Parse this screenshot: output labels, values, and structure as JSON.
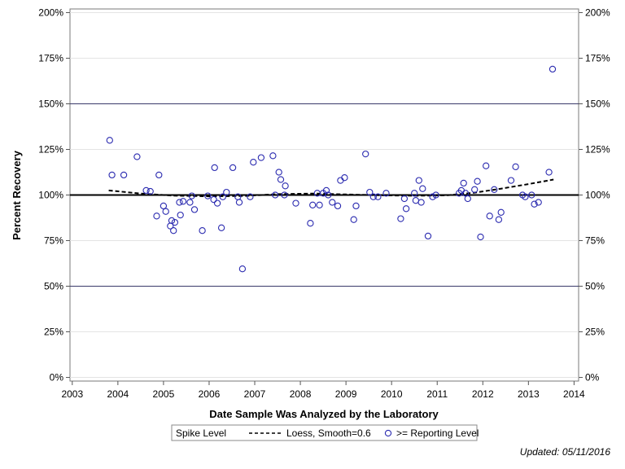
{
  "chart_data": {
    "type": "scatter",
    "title": "",
    "xlabel": "Date Sample Was Analyzed by the Laboratory",
    "ylabel": "Percent Recovery",
    "xlim": [
      2002.95,
      2014.1
    ],
    "ylim": [
      -2,
      202
    ],
    "x_ticks": [
      "2003",
      "2004",
      "2005",
      "2006",
      "2007",
      "2008",
      "2009",
      "2010",
      "2011",
      "2012",
      "2013",
      "2014"
    ],
    "y_ticks_left": [
      "0%",
      "25%",
      "50%",
      "75%",
      "100%",
      "125%",
      "150%",
      "175%",
      "200%"
    ],
    "y_ticks_right": [
      "0%",
      "25%",
      "50%",
      "75%",
      "100%",
      "125%",
      "150%",
      "175%",
      "200%"
    ],
    "reference_lines": [
      {
        "y": 50,
        "style": "thin",
        "color": "#3a3a6a"
      },
      {
        "y": 100,
        "style": "thick",
        "color": "#000000"
      },
      {
        "y": 150,
        "style": "thin",
        "color": "#3a3a6a"
      }
    ],
    "loess": {
      "name": "Loess, Smooth=0.6",
      "color": "#000000",
      "points": [
        [
          2003.8,
          102.5
        ],
        [
          2004.5,
          100.8
        ],
        [
          2005.2,
          99.7
        ],
        [
          2006.0,
          99.3
        ],
        [
          2006.8,
          99.5
        ],
        [
          2007.5,
          100.5
        ],
        [
          2008.3,
          100.8
        ],
        [
          2009.0,
          100.3
        ],
        [
          2009.8,
          99.8
        ],
        [
          2010.5,
          99.6
        ],
        [
          2011.2,
          99.8
        ],
        [
          2011.8,
          101.2
        ],
        [
          2012.4,
          103.5
        ],
        [
          2013.0,
          106.0
        ],
        [
          2013.55,
          108.5
        ]
      ]
    },
    "series": [
      {
        "name": ">= Reporting Level",
        "marker": "open-circle",
        "color": "#2b2bb0",
        "points": [
          [
            2003.82,
            130
          ],
          [
            2003.87,
            111
          ],
          [
            2004.13,
            111
          ],
          [
            2004.42,
            121
          ],
          [
            2004.62,
            102.5
          ],
          [
            2004.71,
            102
          ],
          [
            2004.85,
            88.5
          ],
          [
            2004.9,
            111
          ],
          [
            2005.0,
            94
          ],
          [
            2005.05,
            91
          ],
          [
            2005.15,
            83
          ],
          [
            2005.18,
            86
          ],
          [
            2005.22,
            80.5
          ],
          [
            2005.25,
            85
          ],
          [
            2005.35,
            96
          ],
          [
            2005.37,
            89
          ],
          [
            2005.43,
            96.5
          ],
          [
            2005.58,
            96
          ],
          [
            2005.62,
            99.5
          ],
          [
            2005.68,
            92
          ],
          [
            2005.85,
            80.5
          ],
          [
            2005.97,
            99.5
          ],
          [
            2006.1,
            97.5
          ],
          [
            2006.12,
            115
          ],
          [
            2006.18,
            95.5
          ],
          [
            2006.27,
            82
          ],
          [
            2006.3,
            99
          ],
          [
            2006.38,
            101.5
          ],
          [
            2006.52,
            115
          ],
          [
            2006.63,
            99
          ],
          [
            2006.66,
            96
          ],
          [
            2006.73,
            59.5
          ],
          [
            2006.9,
            99
          ],
          [
            2006.97,
            118
          ],
          [
            2007.14,
            120.5
          ],
          [
            2007.4,
            121.5
          ],
          [
            2007.45,
            100
          ],
          [
            2007.53,
            112.5
          ],
          [
            2007.57,
            108.5
          ],
          [
            2007.65,
            100
          ],
          [
            2007.67,
            105
          ],
          [
            2007.9,
            95.5
          ],
          [
            2008.22,
            84.5
          ],
          [
            2008.27,
            94.5
          ],
          [
            2008.37,
            101
          ],
          [
            2008.42,
            94.5
          ],
          [
            2008.5,
            101
          ],
          [
            2008.57,
            102.5
          ],
          [
            2008.61,
            100
          ],
          [
            2008.7,
            96
          ],
          [
            2008.82,
            94
          ],
          [
            2008.88,
            108
          ],
          [
            2008.97,
            109.5
          ],
          [
            2009.17,
            86.5
          ],
          [
            2009.22,
            94
          ],
          [
            2009.43,
            122.5
          ],
          [
            2009.52,
            101.5
          ],
          [
            2009.6,
            99
          ],
          [
            2009.7,
            99
          ],
          [
            2009.88,
            101
          ],
          [
            2010.2,
            87
          ],
          [
            2010.28,
            98
          ],
          [
            2010.32,
            92.5
          ],
          [
            2010.5,
            101
          ],
          [
            2010.53,
            97
          ],
          [
            2010.6,
            108
          ],
          [
            2010.65,
            96
          ],
          [
            2010.68,
            103.5
          ],
          [
            2010.8,
            77.5
          ],
          [
            2010.9,
            99
          ],
          [
            2010.97,
            100
          ],
          [
            2011.48,
            101
          ],
          [
            2011.53,
            102.5
          ],
          [
            2011.58,
            106.5
          ],
          [
            2011.62,
            101
          ],
          [
            2011.67,
            98
          ],
          [
            2011.82,
            103
          ],
          [
            2011.88,
            107.5
          ],
          [
            2011.95,
            77
          ],
          [
            2012.07,
            116
          ],
          [
            2012.15,
            88.5
          ],
          [
            2012.25,
            103
          ],
          [
            2012.35,
            86.5
          ],
          [
            2012.4,
            90.5
          ],
          [
            2012.62,
            108
          ],
          [
            2012.72,
            115.5
          ],
          [
            2012.87,
            100
          ],
          [
            2012.93,
            99
          ],
          [
            2013.07,
            100
          ],
          [
            2013.13,
            95
          ],
          [
            2013.22,
            96
          ],
          [
            2013.45,
            112.5
          ],
          [
            2013.53,
            169
          ]
        ]
      }
    ],
    "legend": {
      "placement": "bottom-center",
      "entries": [
        {
          "label": "Spike Level",
          "symbol": "none"
        },
        {
          "label": "Loess, Smooth=0.6",
          "symbol": "dashed-line"
        },
        {
          "label": ">= Reporting Level",
          "symbol": "open-circle"
        }
      ]
    },
    "grid": {
      "horizontal": true,
      "vertical": false,
      "color": "#e4e4e4"
    }
  },
  "footer": {
    "updated": "Updated: 05/11/2016"
  }
}
